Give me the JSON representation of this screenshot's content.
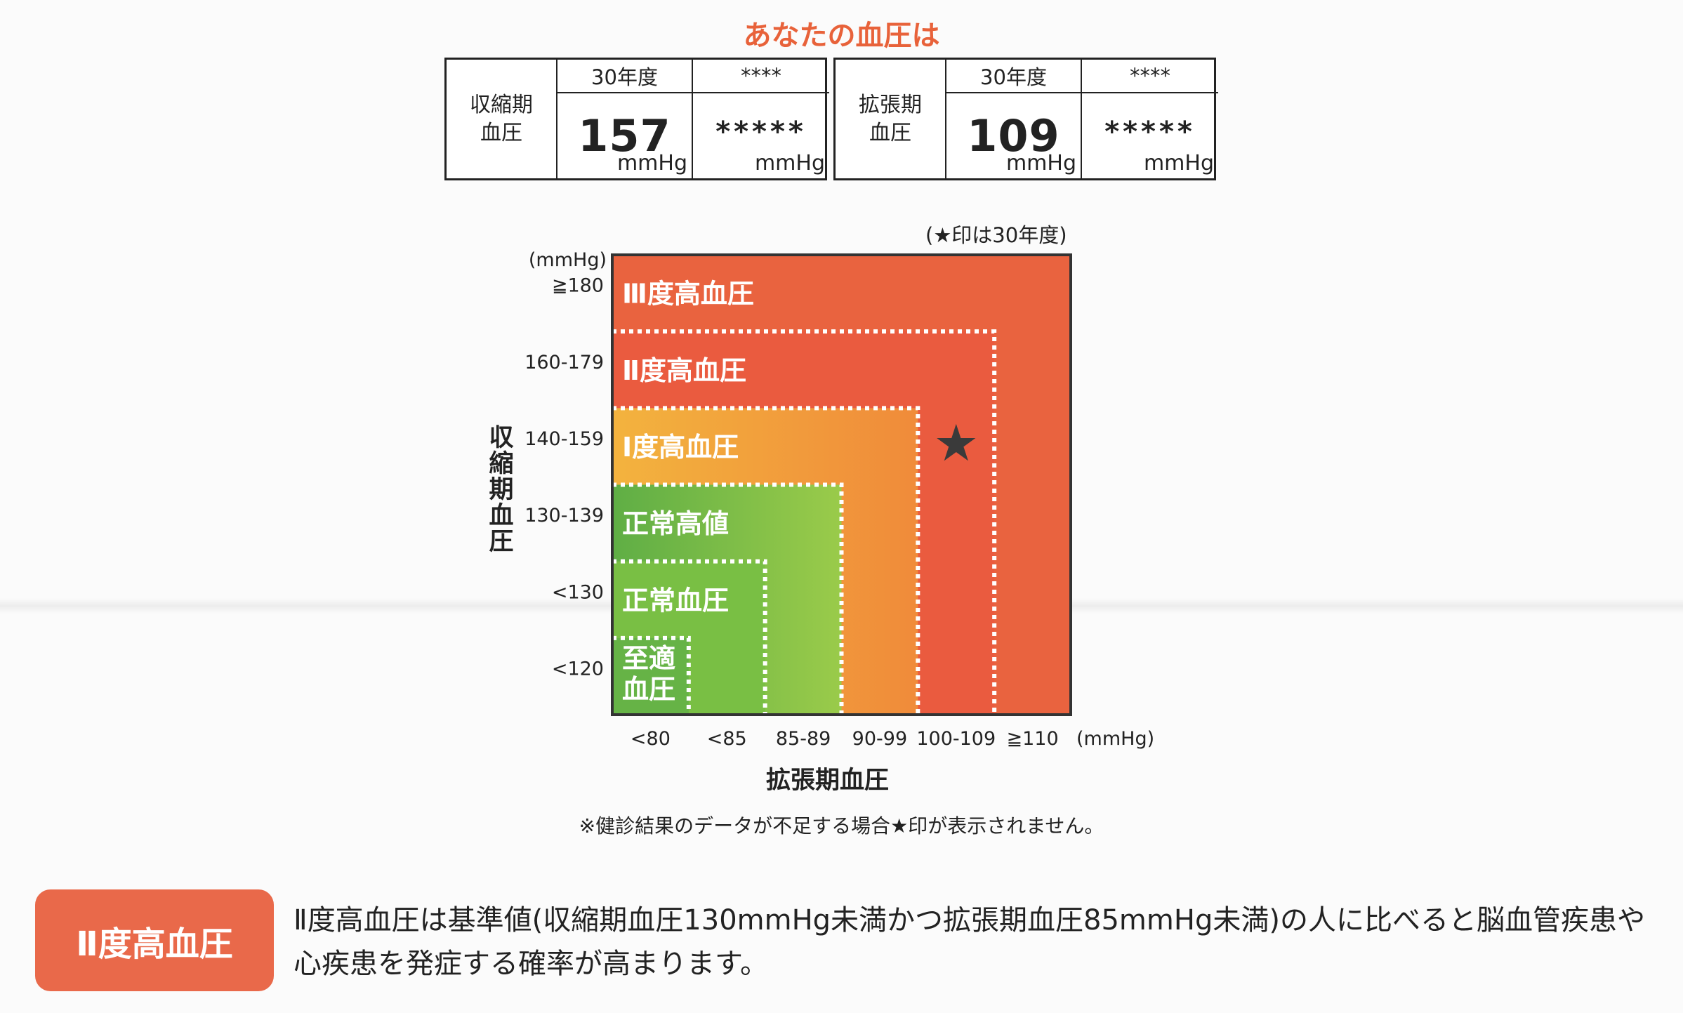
{
  "headline": "あなたの血圧は",
  "systolic": {
    "label": "収縮期\n血圧",
    "col1_header": "30年度",
    "col1_value": "157",
    "col2_header": "****",
    "col2_value": "*****",
    "unit": "mmHg"
  },
  "diastolic": {
    "label": "拡張期\n血圧",
    "col1_header": "30年度",
    "col1_value": "109",
    "col2_header": "****",
    "col2_value": "*****",
    "unit": "mmHg"
  },
  "chart_data": {
    "type": "heatmap",
    "note": "(★印は30年度)",
    "y_unit": "(mmHg)",
    "x_unit": "(mmHg)",
    "y_title": "収縮期血圧",
    "x_title": "拡張期血圧",
    "y_ticks": [
      "≧180",
      "160-179",
      "140-159",
      "130-139",
      "<130",
      "<120"
    ],
    "x_ticks": [
      "<80",
      "<85",
      "85-89",
      "90-99",
      "100-109",
      "≧110"
    ],
    "zones": [
      {
        "label": "Ⅲ度高血圧",
        "color": "#e8603f",
        "x_index": 5,
        "y_index": 0
      },
      {
        "label": "Ⅱ度高血圧",
        "color": "#ea5c40",
        "x_index": 4,
        "y_index": 1
      },
      {
        "label": "Ⅰ度高血圧",
        "color": "#f2a43a",
        "x_index": 3,
        "y_index": 2
      },
      {
        "label": "正常高値",
        "color": "#8cc63f",
        "x_index": 2,
        "y_index": 3
      },
      {
        "label": "正常血圧",
        "color": "#77bd43",
        "x_index": 1,
        "y_index": 4
      },
      {
        "label": "至適\n血圧",
        "color": "#62b145",
        "x_index": 0,
        "y_index": 5
      }
    ],
    "marker": {
      "symbol": "★",
      "systolic": 157,
      "diastolic": 109,
      "x_category": "100-109",
      "y_category": "140-159"
    }
  },
  "footnote": "※健診結果のデータが不足する場合★印が表示されません。",
  "result": {
    "badge": "Ⅱ度高血圧",
    "description": "Ⅱ度高血圧は基準値(収縮期血圧130mmHg未満かつ拡張期血圧85mmHg未満)の人に比べると脳血管疾患や心疾患を発症する確率が高まります。"
  }
}
